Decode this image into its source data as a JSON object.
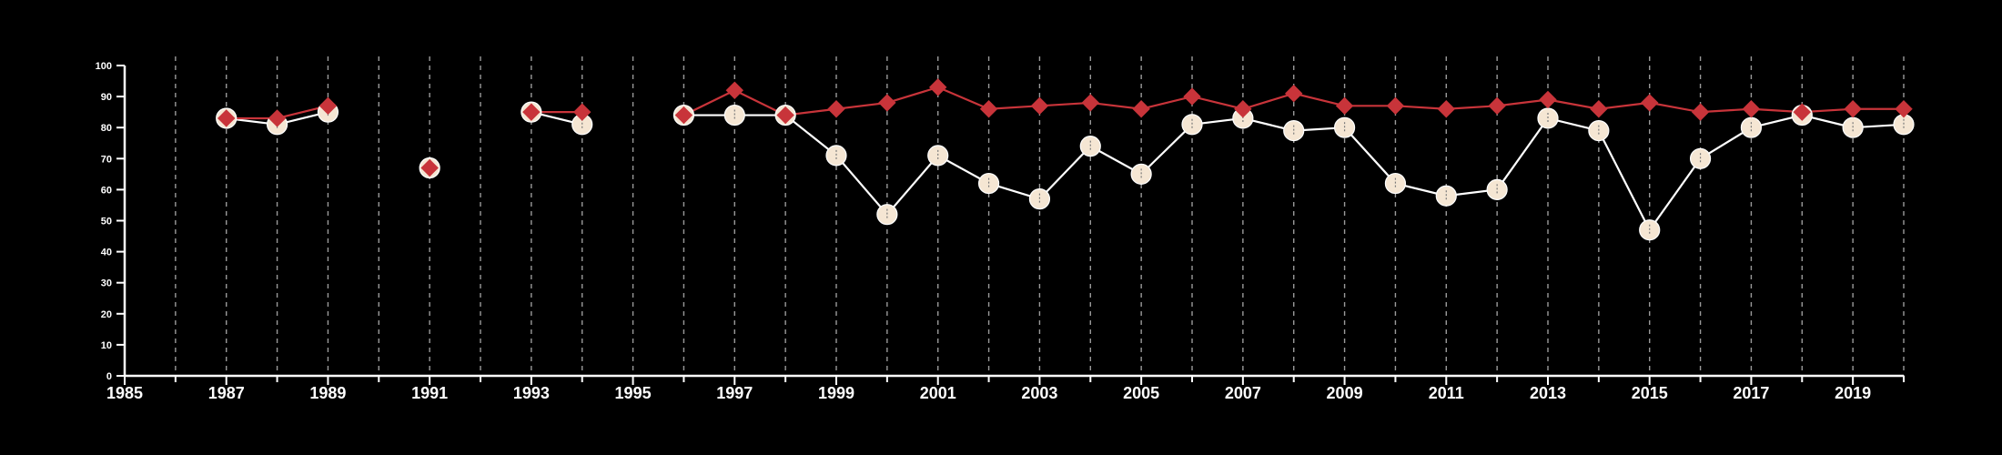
{
  "chart_data": {
    "type": "line",
    "title": "",
    "xlabel": "",
    "ylabel": "",
    "xlim": [
      1985,
      2020
    ],
    "ylim": [
      0,
      100
    ],
    "y_ticks": [
      0,
      10,
      20,
      30,
      40,
      50,
      60,
      70,
      80,
      90,
      100
    ],
    "y_tick_labels": [
      "0",
      "10",
      "20",
      "30",
      "40",
      "50",
      "60",
      "70",
      "80",
      "90",
      "100"
    ],
    "x_ticks": [
      1985,
      1987,
      1989,
      1991,
      1993,
      1995,
      1997,
      1999,
      2001,
      2003,
      2005,
      2007,
      2009,
      2011,
      2013,
      2015,
      2017,
      2019
    ],
    "x_tick_labels": [
      "1985",
      "1987",
      "1989",
      "1991",
      "1993",
      "1995",
      "1997",
      "1999",
      "2001",
      "2003",
      "2005",
      "2007",
      "2009",
      "2011",
      "2013",
      "2015",
      "2017",
      "2019"
    ],
    "vertical_gridlines": "dashed, every year",
    "horizontal_gridlines": false,
    "legend": "none",
    "background_color": "#000000",
    "axis_color": "#ffffff",
    "series": [
      {
        "color": "#c8343a",
        "line_color": "#c8343a",
        "marker": "diamond",
        "points": [
          [
            1987,
            83
          ],
          [
            1988,
            83
          ],
          [
            1989,
            87
          ],
          [
            1991,
            67
          ],
          [
            1993,
            85
          ],
          [
            1994,
            85
          ],
          [
            1996,
            84
          ],
          [
            1997,
            92
          ],
          [
            1998,
            84
          ],
          [
            1999,
            86
          ],
          [
            2000,
            88
          ],
          [
            2001,
            93
          ],
          [
            2002,
            86
          ],
          [
            2003,
            87
          ],
          [
            2004,
            88
          ],
          [
            2005,
            86
          ],
          [
            2006,
            90
          ],
          [
            2007,
            86
          ],
          [
            2008,
            91
          ],
          [
            2009,
            87
          ],
          [
            2010,
            87
          ],
          [
            2011,
            86
          ],
          [
            2012,
            87
          ],
          [
            2013,
            89
          ],
          [
            2014,
            86
          ],
          [
            2015,
            88
          ],
          [
            2016,
            85
          ],
          [
            2017,
            86
          ],
          [
            2018,
            85
          ],
          [
            2019,
            86
          ],
          [
            2020,
            86
          ]
        ],
        "segments": [
          [
            1987,
            1989
          ],
          [
            1993,
            1994
          ],
          [
            1996,
            2020
          ]
        ]
      },
      {
        "color": "#f5e6d3",
        "line_color": "#ffffff",
        "marker": "circle",
        "points": [
          [
            1987,
            83
          ],
          [
            1988,
            81
          ],
          [
            1989,
            85
          ],
          [
            1991,
            67
          ],
          [
            1993,
            85
          ],
          [
            1994,
            81
          ],
          [
            1996,
            84
          ],
          [
            1997,
            84
          ],
          [
            1998,
            84
          ],
          [
            1999,
            71
          ],
          [
            2000,
            52
          ],
          [
            2001,
            71
          ],
          [
            2002,
            62
          ],
          [
            2003,
            57
          ],
          [
            2004,
            74
          ],
          [
            2005,
            65
          ],
          [
            2006,
            81
          ],
          [
            2007,
            83
          ],
          [
            2008,
            79
          ],
          [
            2009,
            80
          ],
          [
            2010,
            62
          ],
          [
            2011,
            58
          ],
          [
            2012,
            60
          ],
          [
            2013,
            83
          ],
          [
            2014,
            79
          ],
          [
            2015,
            47
          ],
          [
            2016,
            70
          ],
          [
            2017,
            80
          ],
          [
            2018,
            84
          ],
          [
            2019,
            80
          ],
          [
            2020,
            81
          ]
        ],
        "segments": [
          [
            1987,
            1989
          ],
          [
            1993,
            1994
          ],
          [
            1996,
            2020
          ]
        ]
      }
    ]
  }
}
